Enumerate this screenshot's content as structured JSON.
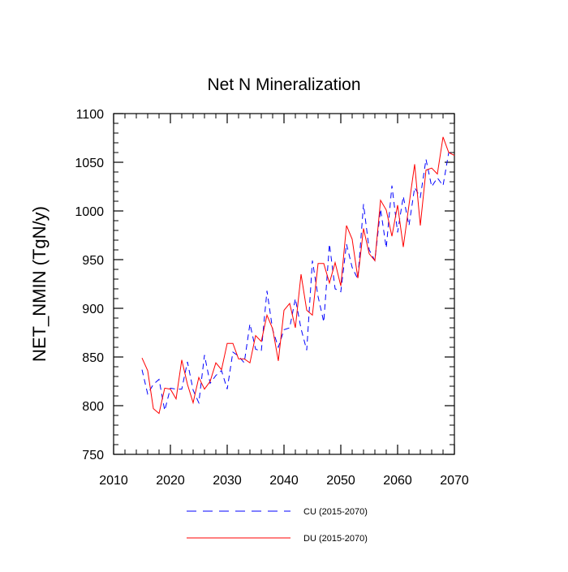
{
  "chart_data": {
    "type": "line",
    "title": "Net N Mineralization",
    "xlabel": "",
    "ylabel": "NET_NMIN  (TgN/y)",
    "xlim": [
      2010,
      2070
    ],
    "ylim": [
      750,
      1100
    ],
    "x_ticks": [
      2010,
      2020,
      2030,
      2040,
      2050,
      2060,
      2070
    ],
    "y_ticks": [
      750,
      800,
      850,
      900,
      950,
      1000,
      1050,
      1100
    ],
    "grid": false,
    "legend_position": "bottom",
    "x": [
      2015,
      2016,
      2017,
      2018,
      2019,
      2020,
      2021,
      2022,
      2023,
      2024,
      2025,
      2026,
      2027,
      2028,
      2029,
      2030,
      2031,
      2032,
      2033,
      2034,
      2035,
      2036,
      2037,
      2038,
      2039,
      2040,
      2041,
      2042,
      2043,
      2044,
      2045,
      2046,
      2047,
      2048,
      2049,
      2050,
      2051,
      2052,
      2053,
      2054,
      2055,
      2056,
      2057,
      2058,
      2059,
      2060,
      2061,
      2062,
      2063,
      2064,
      2065,
      2066,
      2067,
      2068,
      2069,
      2070
    ],
    "series": [
      {
        "name": "CU (2015-2070)",
        "color": "#0000ff",
        "style": "dashed",
        "values": [
          837,
          812,
          822,
          827,
          795,
          818,
          817,
          817,
          845,
          816,
          803,
          852,
          823,
          831,
          836,
          817,
          855,
          851,
          844,
          884,
          858,
          856,
          918,
          878,
          860,
          878,
          880,
          910,
          879,
          857,
          949,
          912,
          886,
          966,
          920,
          917,
          966,
          942,
          930,
          1007,
          960,
          949,
          1002,
          962,
          1026,
          978,
          1015,
          985,
          1024,
          1014,
          1053,
          1025,
          1034,
          1026,
          1060,
          1058
        ]
      },
      {
        "name": "DU (2015-2070)",
        "color": "#ff0000",
        "style": "solid",
        "values": [
          849,
          836,
          797,
          792,
          818,
          817,
          807,
          847,
          822,
          803,
          829,
          817,
          825,
          844,
          837,
          864,
          864,
          848,
          848,
          844,
          872,
          866,
          893,
          879,
          846,
          898,
          905,
          880,
          935,
          898,
          893,
          946,
          946,
          926,
          947,
          923,
          985,
          971,
          931,
          982,
          956,
          949,
          1011,
          1001,
          974,
          1006,
          963,
          1006,
          1048,
          985,
          1042,
          1044,
          1038,
          1076,
          1060,
          1057
        ]
      }
    ]
  }
}
